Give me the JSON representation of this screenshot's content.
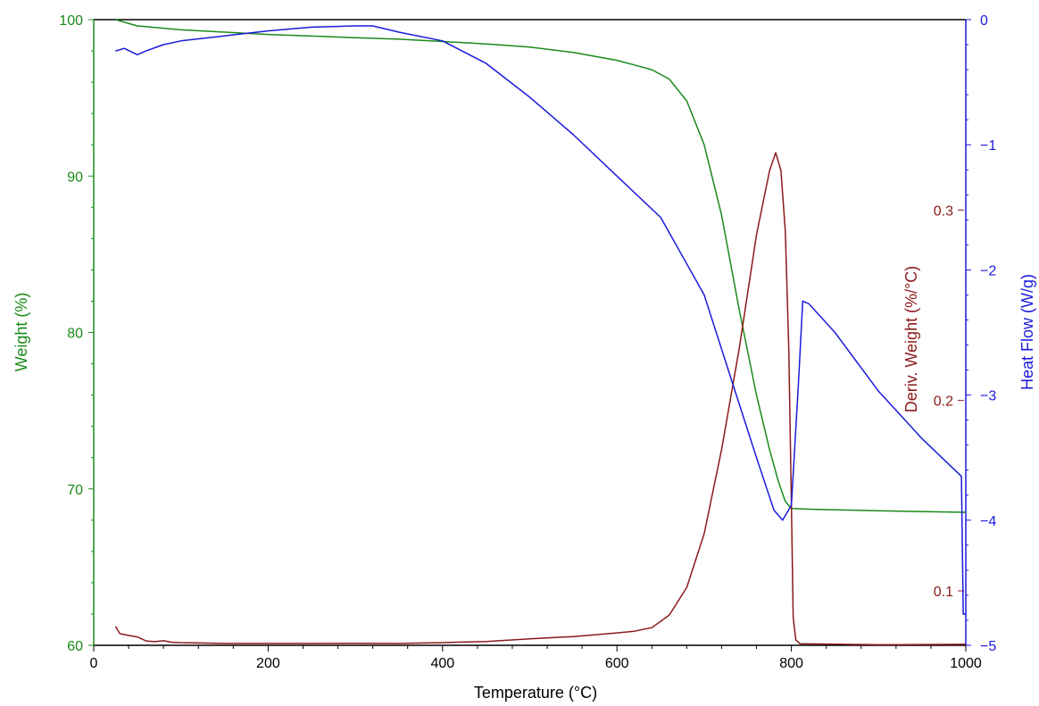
{
  "chart_data": {
    "type": "line",
    "title": "",
    "xlabel": "Temperature (°C)",
    "xlim": [
      0,
      1000
    ],
    "x_ticks": [
      0,
      200,
      400,
      600,
      800,
      1000
    ],
    "grid": false,
    "legend": "none",
    "axes": {
      "weight": {
        "label": "Weight (%)",
        "side": "left",
        "color": "#1a8a1a",
        "ylim": [
          60,
          100
        ],
        "ticks": [
          60,
          70,
          80,
          90,
          100
        ]
      },
      "deriv": {
        "label": "Deriv. Weight (%/°C)",
        "side": "right-inner",
        "color": "#8b1a1a",
        "ylim": [
          0.0714,
          0.4
        ],
        "ticks": [
          0.1,
          0.2,
          0.3
        ]
      },
      "heat": {
        "label": "Heat Flow (W/g)",
        "side": "right",
        "color": "#1a1adb",
        "ylim": [
          -5,
          0
        ],
        "ticks": [
          -5,
          -4,
          -3,
          -2,
          -1,
          0
        ]
      }
    },
    "series": [
      {
        "axis": "weight",
        "color": "#1a8a1a",
        "points": [
          [
            25,
            100
          ],
          [
            50,
            99.6
          ],
          [
            100,
            99.35
          ],
          [
            150,
            99.2
          ],
          [
            200,
            99.05
          ],
          [
            250,
            98.95
          ],
          [
            300,
            98.85
          ],
          [
            350,
            98.75
          ],
          [
            400,
            98.6
          ],
          [
            450,
            98.45
          ],
          [
            500,
            98.25
          ],
          [
            550,
            97.9
          ],
          [
            600,
            97.4
          ],
          [
            620,
            97.1
          ],
          [
            640,
            96.8
          ],
          [
            660,
            96.2
          ],
          [
            680,
            94.8
          ],
          [
            700,
            92.0
          ],
          [
            720,
            87.5
          ],
          [
            740,
            81.5
          ],
          [
            760,
            76.0
          ],
          [
            775,
            72.5
          ],
          [
            785,
            70.5
          ],
          [
            793,
            69.2
          ],
          [
            800,
            68.75
          ],
          [
            820,
            68.7
          ],
          [
            900,
            68.6
          ],
          [
            1000,
            68.5
          ]
        ]
      },
      {
        "axis": "deriv",
        "color": "#8b1a1a",
        "points": [
          [
            25,
            0.0814
          ],
          [
            30,
            0.0775
          ],
          [
            40,
            0.0766
          ],
          [
            50,
            0.0758
          ],
          [
            60,
            0.0737
          ],
          [
            70,
            0.0733
          ],
          [
            80,
            0.0738
          ],
          [
            90,
            0.073
          ],
          [
            100,
            0.0728
          ],
          [
            150,
            0.0724
          ],
          [
            200,
            0.0724
          ],
          [
            250,
            0.0724
          ],
          [
            300,
            0.0725
          ],
          [
            350,
            0.0724
          ],
          [
            400,
            0.0728
          ],
          [
            450,
            0.0734
          ],
          [
            500,
            0.0748
          ],
          [
            550,
            0.076
          ],
          [
            600,
            0.0779
          ],
          [
            620,
            0.0788
          ],
          [
            640,
            0.0807
          ],
          [
            660,
            0.0873
          ],
          [
            680,
            0.1018
          ],
          [
            700,
            0.13
          ],
          [
            720,
            0.1742
          ],
          [
            740,
            0.2268
          ],
          [
            760,
            0.287
          ],
          [
            775,
            0.3208
          ],
          [
            782,
            0.3301
          ],
          [
            788,
            0.3208
          ],
          [
            793,
            0.2888
          ],
          [
            797,
            0.2268
          ],
          [
            800,
            0.146
          ],
          [
            802,
            0.0863
          ],
          [
            805,
            0.0743
          ],
          [
            810,
            0.0722
          ],
          [
            900,
            0.0717
          ],
          [
            1000,
            0.0719
          ]
        ]
      },
      {
        "axis": "heat",
        "color": "#1a1adb",
        "points": [
          [
            25,
            -0.25
          ],
          [
            35,
            -0.23
          ],
          [
            50,
            -0.28
          ],
          [
            60,
            -0.25
          ],
          [
            80,
            -0.2
          ],
          [
            100,
            -0.17
          ],
          [
            150,
            -0.13
          ],
          [
            200,
            -0.09
          ],
          [
            250,
            -0.06
          ],
          [
            300,
            -0.05
          ],
          [
            320,
            -0.05
          ],
          [
            350,
            -0.1
          ],
          [
            400,
            -0.17
          ],
          [
            450,
            -0.35
          ],
          [
            500,
            -0.62
          ],
          [
            550,
            -0.92
          ],
          [
            600,
            -1.25
          ],
          [
            650,
            -1.58
          ],
          [
            700,
            -2.2
          ],
          [
            730,
            -2.85
          ],
          [
            760,
            -3.5
          ],
          [
            780,
            -3.92
          ],
          [
            790,
            -4.0
          ],
          [
            800,
            -3.88
          ],
          [
            808,
            -2.92
          ],
          [
            813,
            -2.25
          ],
          [
            820,
            -2.27
          ],
          [
            850,
            -2.5
          ],
          [
            900,
            -2.97
          ],
          [
            950,
            -3.35
          ],
          [
            995,
            -3.65
          ],
          [
            997,
            -4.75
          ],
          [
            1000,
            -4.75
          ]
        ]
      }
    ]
  }
}
